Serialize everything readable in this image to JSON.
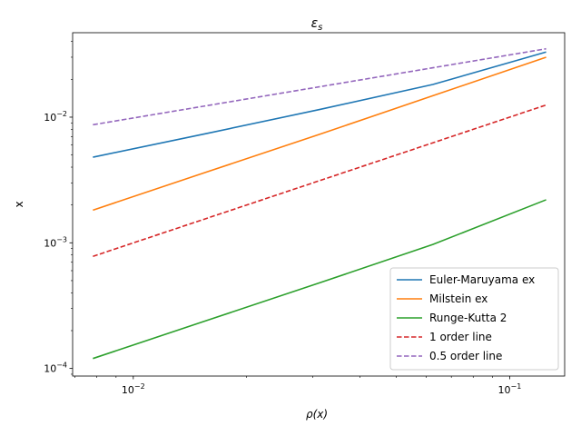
{
  "chart_data": {
    "type": "line",
    "title_main": "ε",
    "title_sub": "s",
    "xlabel_main": "ρ(x)",
    "ylabel": "x",
    "x_scale": "log",
    "y_scale": "log",
    "xlim": [
      0.0069,
      0.14
    ],
    "ylim": [
      8.7e-05,
      0.047
    ],
    "x_major_ticks": [
      {
        "value": 0.01,
        "base": "10",
        "exp": "−2"
      },
      {
        "value": 0.1,
        "base": "10",
        "exp": "−1"
      }
    ],
    "y_major_ticks": [
      {
        "value": 0.0001,
        "base": "10",
        "exp": "−4"
      },
      {
        "value": 0.001,
        "base": "10",
        "exp": "−3"
      },
      {
        "value": 0.01,
        "base": "10",
        "exp": "−2"
      }
    ],
    "grid": false,
    "legend_position": "bottom-right",
    "series": [
      {
        "name": "Euler-Maruyama ex",
        "color": "#1f77b4",
        "dash": "solid",
        "x": [
          0.0078125,
          0.015625,
          0.03125,
          0.0625,
          0.125
        ],
        "y": [
          0.0048,
          0.0074,
          0.0115,
          0.0182,
          0.033
        ]
      },
      {
        "name": "Milstein ex",
        "color": "#ff7f0e",
        "dash": "solid",
        "x": [
          0.0078125,
          0.015625,
          0.03125,
          0.0625,
          0.125
        ],
        "y": [
          0.00182,
          0.00365,
          0.0073,
          0.0148,
          0.03
        ]
      },
      {
        "name": "Runge-Kutta 2",
        "color": "#2ca02c",
        "dash": "solid",
        "x": [
          0.0078125,
          0.015625,
          0.03125,
          0.0625,
          0.125
        ],
        "y": [
          0.00012,
          0.00024,
          0.00048,
          0.00097,
          0.0022
        ]
      },
      {
        "name": "1 order line",
        "color": "#d62728",
        "dash": "dashed",
        "x": [
          0.0078125,
          0.125
        ],
        "y": [
          0.00078,
          0.0125
        ]
      },
      {
        "name": "0.5 order line",
        "color": "#9467bd",
        "dash": "dashed",
        "x": [
          0.0078125,
          0.125
        ],
        "y": [
          0.0087,
          0.035
        ]
      }
    ]
  }
}
